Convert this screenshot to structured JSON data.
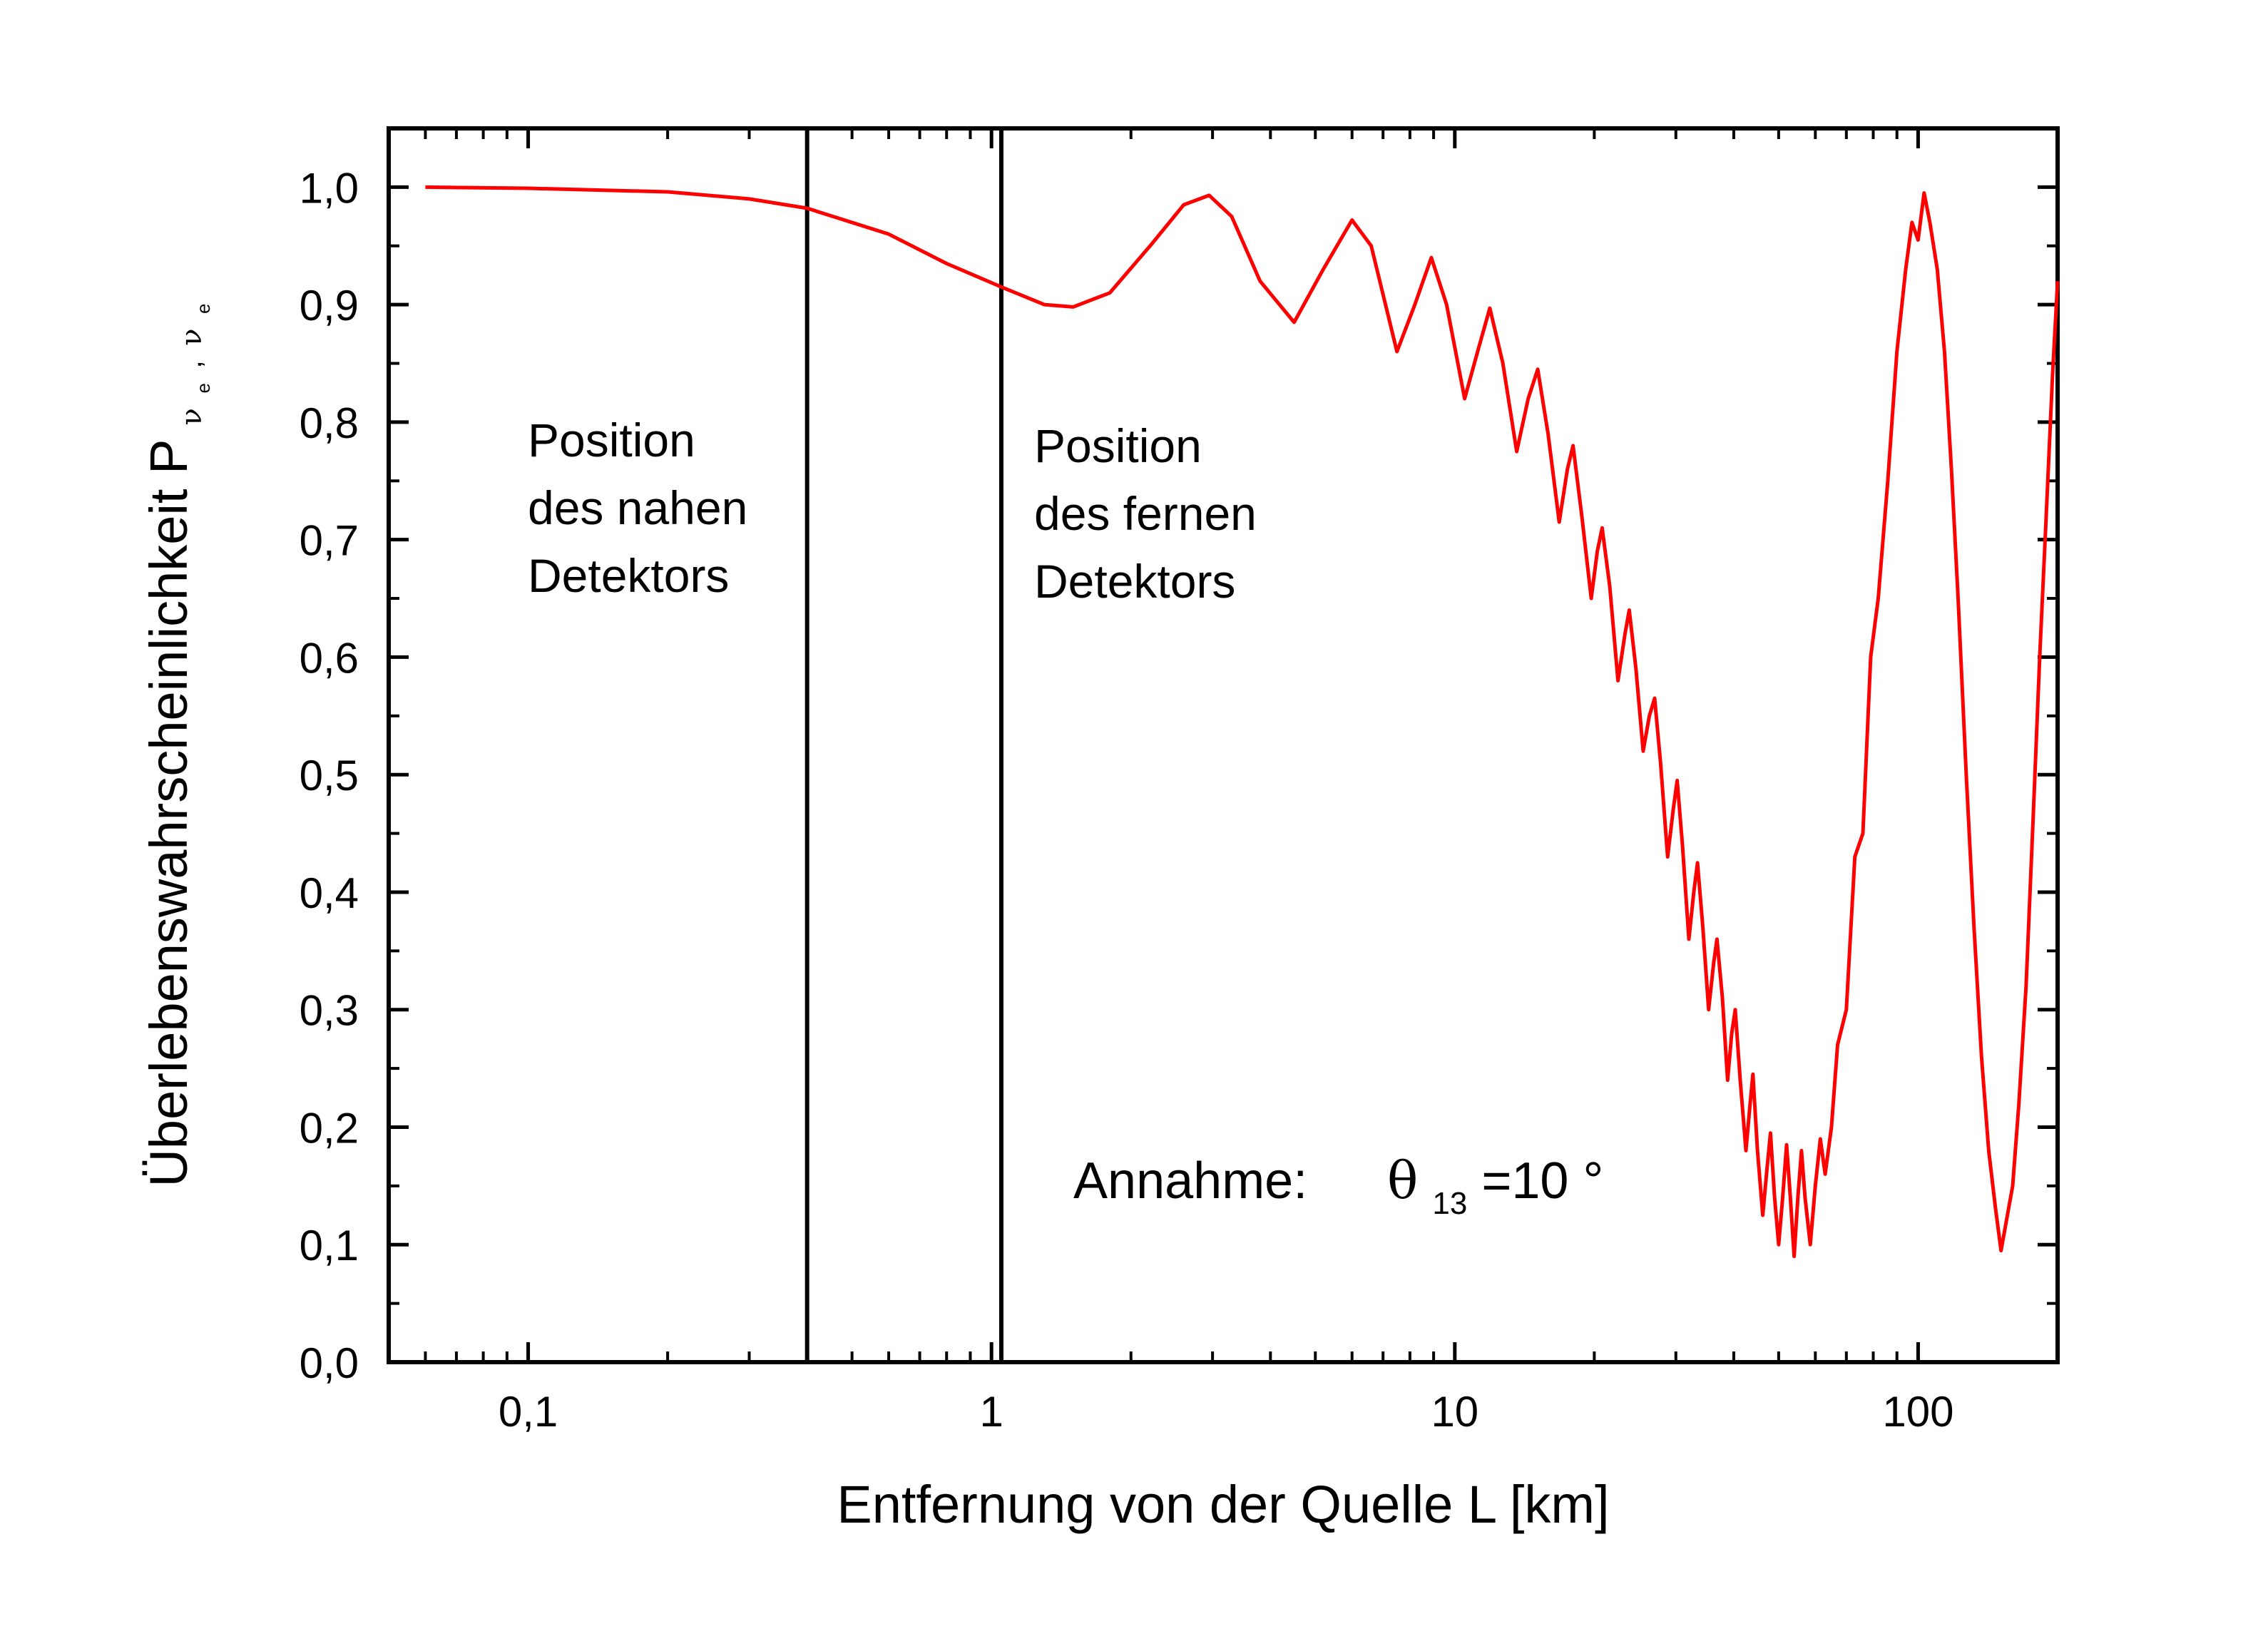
{
  "chart_data": {
    "type": "line",
    "title": "",
    "xlabel": "Entfernung von der Quelle L [km]",
    "ylabel": {
      "main": "Überlebenswahrscheinlichkeit P",
      "subscript_1": "ν",
      "subscript_1_sub": "e",
      "separator": ",",
      "subscript_2": "ν",
      "subscript_2_sub": "e"
    },
    "x_scale": "log",
    "xlim": [
      0.05,
      200
    ],
    "ylim": [
      0.0,
      1.05
    ],
    "x_ticks": [
      {
        "value": 0.1,
        "label": "0,1"
      },
      {
        "value": 1,
        "label": "1"
      },
      {
        "value": 10,
        "label": "10"
      },
      {
        "value": 100,
        "label": "100"
      }
    ],
    "y_ticks": [
      {
        "value": 0.0,
        "label": "0,0"
      },
      {
        "value": 0.1,
        "label": "0,1"
      },
      {
        "value": 0.2,
        "label": "0,2"
      },
      {
        "value": 0.3,
        "label": "0,3"
      },
      {
        "value": 0.4,
        "label": "0,4"
      },
      {
        "value": 0.5,
        "label": "0,5"
      },
      {
        "value": 0.6,
        "label": "0,6"
      },
      {
        "value": 0.7,
        "label": "0,7"
      },
      {
        "value": 0.8,
        "label": "0,8"
      },
      {
        "value": 0.9,
        "label": "0,9"
      },
      {
        "value": 1.0,
        "label": "1,0"
      }
    ],
    "grid": false,
    "series": [
      {
        "color": "#ff0000",
        "points": [
          [
            0.06,
            1.0
          ],
          [
            0.1,
            0.999
          ],
          [
            0.2,
            0.996
          ],
          [
            0.3,
            0.99
          ],
          [
            0.4,
            0.982
          ],
          [
            0.6,
            0.96
          ],
          [
            0.8,
            0.935
          ],
          [
            1.05,
            0.915
          ],
          [
            1.3,
            0.9
          ],
          [
            1.5,
            0.898
          ],
          [
            1.8,
            0.91
          ],
          [
            2.2,
            0.95
          ],
          [
            2.6,
            0.985
          ],
          [
            2.95,
            0.993
          ],
          [
            3.3,
            0.975
          ],
          [
            3.8,
            0.92
          ],
          [
            4.5,
            0.885
          ],
          [
            5.2,
            0.93
          ],
          [
            6.0,
            0.972
          ],
          [
            6.6,
            0.95
          ],
          [
            7.5,
            0.86
          ],
          [
            8.2,
            0.9
          ],
          [
            8.9,
            0.94
          ],
          [
            9.6,
            0.9
          ],
          [
            10.5,
            0.82
          ],
          [
            11.2,
            0.86
          ],
          [
            11.9,
            0.897
          ],
          [
            12.7,
            0.85
          ],
          [
            13.6,
            0.775
          ],
          [
            14.4,
            0.82
          ],
          [
            15.1,
            0.845
          ],
          [
            15.9,
            0.79
          ],
          [
            16.8,
            0.715
          ],
          [
            17.5,
            0.76
          ],
          [
            18.0,
            0.78
          ],
          [
            18.8,
            0.72
          ],
          [
            19.7,
            0.65
          ],
          [
            20.3,
            0.69
          ],
          [
            20.8,
            0.71
          ],
          [
            21.6,
            0.66
          ],
          [
            22.5,
            0.58
          ],
          [
            23.3,
            0.62
          ],
          [
            23.8,
            0.64
          ],
          [
            24.6,
            0.59
          ],
          [
            25.5,
            0.52
          ],
          [
            26.3,
            0.55
          ],
          [
            27.0,
            0.565
          ],
          [
            27.8,
            0.51
          ],
          [
            28.8,
            0.43
          ],
          [
            29.6,
            0.47
          ],
          [
            30.2,
            0.495
          ],
          [
            31.0,
            0.44
          ],
          [
            32.0,
            0.36
          ],
          [
            32.8,
            0.4
          ],
          [
            33.4,
            0.425
          ],
          [
            34.3,
            0.37
          ],
          [
            35.3,
            0.3
          ],
          [
            36.2,
            0.34
          ],
          [
            36.8,
            0.36
          ],
          [
            37.8,
            0.31
          ],
          [
            38.8,
            0.24
          ],
          [
            39.6,
            0.28
          ],
          [
            40.3,
            0.3
          ],
          [
            41.3,
            0.24
          ],
          [
            42.5,
            0.18
          ],
          [
            43.4,
            0.22
          ],
          [
            44.0,
            0.245
          ],
          [
            45.0,
            0.18
          ],
          [
            46.2,
            0.125
          ],
          [
            47.2,
            0.165
          ],
          [
            48.0,
            0.195
          ],
          [
            49.0,
            0.14
          ],
          [
            50.0,
            0.1
          ],
          [
            51.0,
            0.14
          ],
          [
            52.0,
            0.185
          ],
          [
            53.0,
            0.14
          ],
          [
            54.0,
            0.09
          ],
          [
            55.0,
            0.14
          ],
          [
            56.0,
            0.18
          ],
          [
            57.0,
            0.14
          ],
          [
            58.5,
            0.1
          ],
          [
            60.0,
            0.15
          ],
          [
            61.5,
            0.19
          ],
          [
            63.0,
            0.16
          ],
          [
            65.0,
            0.2
          ],
          [
            67.0,
            0.27
          ],
          [
            70.0,
            0.3
          ],
          [
            73.0,
            0.43
          ],
          [
            76.0,
            0.45
          ],
          [
            79.0,
            0.6
          ],
          [
            82.0,
            0.65
          ],
          [
            86.0,
            0.75
          ],
          [
            90.0,
            0.86
          ],
          [
            94.0,
            0.93
          ],
          [
            97.0,
            0.97
          ],
          [
            100.0,
            0.955
          ],
          [
            103.0,
            0.995
          ],
          [
            106.0,
            0.97
          ],
          [
            110.0,
            0.93
          ],
          [
            114.0,
            0.86
          ],
          [
            118.0,
            0.76
          ],
          [
            122.0,
            0.65
          ],
          [
            127.0,
            0.5
          ],
          [
            132.0,
            0.37
          ],
          [
            137.0,
            0.26
          ],
          [
            142.0,
            0.18
          ],
          [
            147.0,
            0.13
          ],
          [
            151.0,
            0.095
          ],
          [
            155.0,
            0.12
          ],
          [
            160.0,
            0.15
          ],
          [
            165.0,
            0.22
          ],
          [
            171.0,
            0.32
          ],
          [
            177.0,
            0.46
          ],
          [
            183.0,
            0.6
          ],
          [
            189.0,
            0.72
          ],
          [
            195.0,
            0.84
          ],
          [
            200.0,
            0.92
          ]
        ]
      }
    ],
    "vertical_lines": [
      {
        "x": 0.4,
        "color": "#000000"
      },
      {
        "x": 1.05,
        "color": "#000000"
      }
    ],
    "annotations": [
      {
        "lines": [
          "Position",
          "des nahen",
          "Detektors"
        ]
      },
      {
        "lines": [
          "Position",
          "des fernen",
          "Detektors"
        ]
      },
      {
        "prefix": "Annahme:",
        "symbol": "θ",
        "symbol_sub": "13",
        "suffix": "=10 °"
      }
    ]
  }
}
